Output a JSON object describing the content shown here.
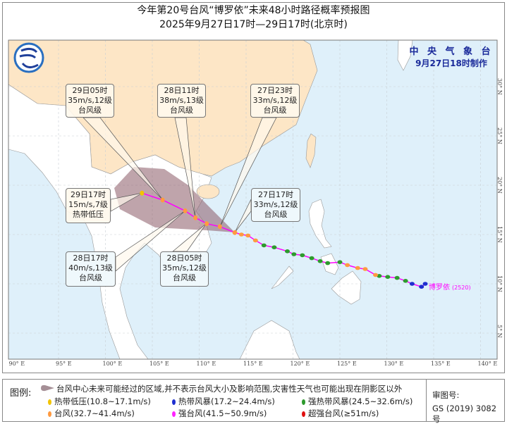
{
  "header": {
    "title": "今年第20号台风“博罗依”未来48小时路径概率预报图",
    "subtitle": "2025年9月27日17时—29日17时(北京时)"
  },
  "issuer": {
    "name": "中 央 气 象 台",
    "issued": "9月27日18时制作"
  },
  "typhoon_label": "博罗依",
  "typhoon_code": "(2520)",
  "axes": {
    "lon_labels": [
      "90° E",
      "95° E",
      "100° E",
      "105° E",
      "110° E",
      "115° E",
      "120° E",
      "125° E",
      "130° E",
      "135° E",
      "140° E"
    ],
    "lat_labels": [
      "30° N",
      "25° N",
      "20° N",
      "15° N",
      "10° N",
      "5° N"
    ]
  },
  "colors": {
    "china_land": "#fde6c6",
    "other_land": "#ffffff",
    "ocean": "#dff0fa",
    "track_line": "#ff00ff",
    "cone": "#8a5a66",
    "issuer_text": "#1a2a9a"
  },
  "intensity_colors": {
    "TD": "#f2c400",
    "TS": "#1f2fd0",
    "STS": "#2e9a2e",
    "TY": "#ff9a40",
    "STY": "#ff22ff",
    "SuperTY": "#e01010"
  },
  "forecast_callouts": [
    {
      "time": "29日05时",
      "wind": "35m/s,12级",
      "grade": "台风级"
    },
    {
      "time": "28日11时",
      "wind": "38m/s,13级",
      "grade": "台风级"
    },
    {
      "time": "27日23时",
      "wind": "33m/s,12级",
      "grade": "台风级"
    },
    {
      "time": "29日17时",
      "wind": "15m/s,7级",
      "grade": "热带低压"
    },
    {
      "time": "27日17时",
      "wind": "33m/s,12级",
      "grade": "台风级"
    },
    {
      "time": "28日17时",
      "wind": "40m/s,13级",
      "grade": "台风级"
    },
    {
      "time": "28日05时",
      "wind": "35m/s,12级",
      "grade": "台风级"
    }
  ],
  "forecast_track": [
    {
      "time": "27日17时",
      "lon": 113.8,
      "lat": 15.2,
      "cat": "TY"
    },
    {
      "time": "27日23时",
      "lon": 112.2,
      "lat": 15.8,
      "cat": "TY"
    },
    {
      "time": "28日05时",
      "lon": 110.8,
      "lat": 16.1,
      "cat": "TY"
    },
    {
      "time": "28日11时",
      "lon": 109.6,
      "lat": 16.7,
      "cat": "TY"
    },
    {
      "time": "28日17时",
      "lon": 108.5,
      "lat": 17.4,
      "cat": "TY"
    },
    {
      "time": "29日05时",
      "lon": 106.1,
      "lat": 18.5,
      "cat": "TY"
    },
    {
      "time": "29日17时",
      "lon": 103.9,
      "lat": 19.2,
      "cat": "TD"
    }
  ],
  "past_track": [
    {
      "lon": 134.1,
      "lat": 10.0,
      "cat": "TS"
    },
    {
      "lon": 133.7,
      "lat": 9.7,
      "cat": "TS"
    },
    {
      "lon": 132.7,
      "lat": 10.0,
      "cat": "TS"
    },
    {
      "lon": 132.0,
      "lat": 10.3,
      "cat": "STS"
    },
    {
      "lon": 131.1,
      "lat": 10.6,
      "cat": "STS"
    },
    {
      "lon": 130.1,
      "lat": 10.7,
      "cat": "STS"
    },
    {
      "lon": 129.2,
      "lat": 10.8,
      "cat": "STS"
    },
    {
      "lon": 128.8,
      "lat": 10.9,
      "cat": "TY"
    },
    {
      "lon": 127.7,
      "lat": 11.5,
      "cat": "TY"
    },
    {
      "lon": 126.9,
      "lat": 11.6,
      "cat": "TY"
    },
    {
      "lon": 125.8,
      "lat": 11.9,
      "cat": "TY"
    },
    {
      "lon": 125.0,
      "lat": 12.2,
      "cat": "STS"
    },
    {
      "lon": 123.7,
      "lat": 12.1,
      "cat": "STS"
    },
    {
      "lon": 122.9,
      "lat": 12.3,
      "cat": "STS"
    },
    {
      "lon": 122.0,
      "lat": 12.6,
      "cat": "STS"
    },
    {
      "lon": 121.0,
      "lat": 12.9,
      "cat": "STS"
    },
    {
      "lon": 120.1,
      "lat": 13.0,
      "cat": "STS"
    },
    {
      "lon": 119.4,
      "lat": 13.3,
      "cat": "STS"
    },
    {
      "lon": 118.0,
      "lat": 13.7,
      "cat": "STS"
    },
    {
      "lon": 116.9,
      "lat": 13.9,
      "cat": "STS"
    },
    {
      "lon": 116.0,
      "lat": 14.4,
      "cat": "TY"
    },
    {
      "lon": 115.2,
      "lat": 14.9,
      "cat": "TY"
    },
    {
      "lon": 114.5,
      "lat": 15.0,
      "cat": "TY"
    },
    {
      "lon": 113.8,
      "lat": 15.2,
      "cat": "TY"
    }
  ],
  "legend": {
    "header": "图例:",
    "cone_text": "台风中心未来可能经过的区域,并不表示台风大小及影响范围,灾害性天气也可能出现在阴影区以外",
    "items": [
      {
        "label": "热带低压(10.8~17.1m/s)",
        "color": "#f2c400"
      },
      {
        "label": "热带风暴(17.2~24.4m/s)",
        "color": "#1f2fd0"
      },
      {
        "label": "强热带风暴(24.5~32.6m/s)",
        "color": "#2e9a2e"
      },
      {
        "label": "台风(32.7~41.4m/s)",
        "color": "#ff9a40"
      },
      {
        "label": "强台风(41.5~50.9m/s)",
        "color": "#ff22ff"
      },
      {
        "label": "超强台风(≥51m/s)",
        "color": "#e01010"
      }
    ],
    "review_label": "审图号:",
    "review_number": "GS (2019) 3082号"
  }
}
